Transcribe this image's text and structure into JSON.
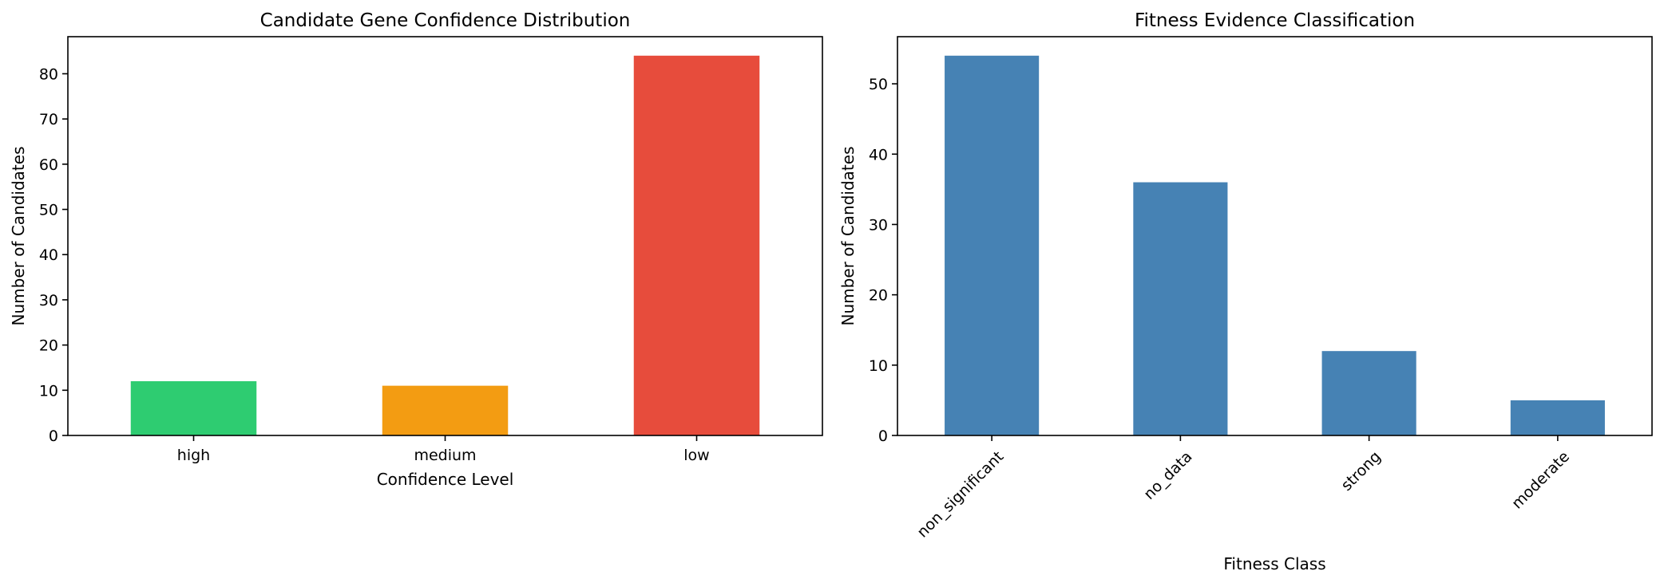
{
  "chart_data": [
    {
      "type": "bar",
      "title": "Candidate Gene Confidence Distribution",
      "xlabel": "Confidence Level",
      "ylabel": "Number of Candidates",
      "categories": [
        "high",
        "medium",
        "low"
      ],
      "values": [
        12,
        11,
        84
      ],
      "colors": [
        "#2ecc71",
        "#f39c12",
        "#e74c3c"
      ],
      "ylim": [
        0,
        88.2
      ],
      "yticks": [
        0,
        10,
        20,
        30,
        40,
        50,
        60,
        70,
        80
      ],
      "xtick_rotation": 0,
      "grid": false,
      "legend": "none"
    },
    {
      "type": "bar",
      "title": "Fitness Evidence Classification",
      "xlabel": "Fitness Class",
      "ylabel": "Number of Candidates",
      "categories": [
        "non_significant",
        "no_data",
        "strong",
        "moderate"
      ],
      "values": [
        54,
        36,
        12,
        5
      ],
      "colors": [
        "#4682b4",
        "#4682b4",
        "#4682b4",
        "#4682b4"
      ],
      "ylim": [
        0,
        56.7
      ],
      "yticks": [
        0,
        10,
        20,
        30,
        40,
        50
      ],
      "xtick_rotation": -45,
      "grid": false,
      "legend": "none"
    }
  ]
}
